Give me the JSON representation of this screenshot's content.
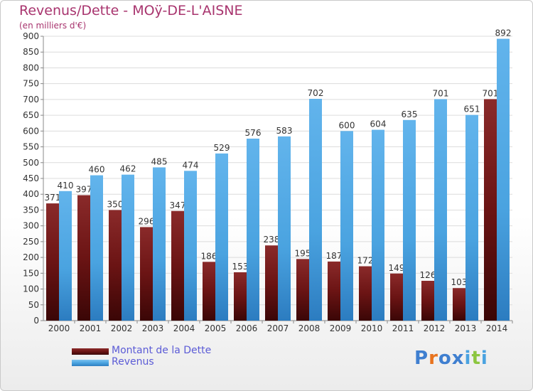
{
  "header": {
    "title": "Revenus/Dette - MOÿ-DE-L'AISNE",
    "subtitle": "(en milliers d'€)"
  },
  "legend": {
    "items": [
      {
        "label": "Montant de la Dette",
        "color": "#6b1414"
      },
      {
        "label": "Revenus",
        "color": "#4aa3e0"
      }
    ]
  },
  "logo": {
    "text": "Proxiti",
    "letters": [
      "P",
      "r",
      "o",
      "x",
      "i",
      "t",
      "i"
    ],
    "colors": [
      "#3f7fd0",
      "#e8731e",
      "#3f7fd0",
      "#3f7fd0",
      "#4aa3e0",
      "#8cc63f",
      "#4aa3e0"
    ]
  },
  "chart_data": {
    "type": "bar",
    "categories": [
      "2000",
      "2001",
      "2002",
      "2003",
      "2004",
      "2005",
      "2006",
      "2007",
      "2008",
      "2009",
      "2010",
      "2011",
      "2012",
      "2013",
      "2014"
    ],
    "series": [
      {
        "name": "Montant de la Dette",
        "color": "#6b1414",
        "values": [
          371,
          397,
          350,
          296,
          347,
          186,
          153,
          238,
          195,
          187,
          172,
          149,
          126,
          103,
          701
        ],
        "labels": [
          "371",
          "397",
          "350",
          "296",
          "347",
          "186",
          "153",
          "238",
          "195",
          "187",
          "172",
          "149",
          "126",
          "103",
          "701"
        ]
      },
      {
        "name": "Revenus",
        "color": "#4aa3e0",
        "values": [
          410,
          460,
          462,
          485,
          474,
          529,
          576,
          583,
          702,
          600,
          604,
          635,
          701,
          651,
          892
        ],
        "labels": [
          "410",
          "460",
          "462",
          "485",
          "474",
          "529",
          "576",
          "583",
          "702",
          "600",
          "604",
          "635",
          "701",
          "651",
          "892"
        ]
      }
    ],
    "yticks": [
      "0",
      "50",
      "100",
      "150",
      "200",
      "250",
      "300",
      "350",
      "400",
      "450",
      "500",
      "550",
      "600",
      "650",
      "700",
      "750",
      "800",
      "850",
      "900"
    ],
    "ylim": [
      0,
      900
    ],
    "grid": true,
    "legend_position": "bottom-left"
  }
}
